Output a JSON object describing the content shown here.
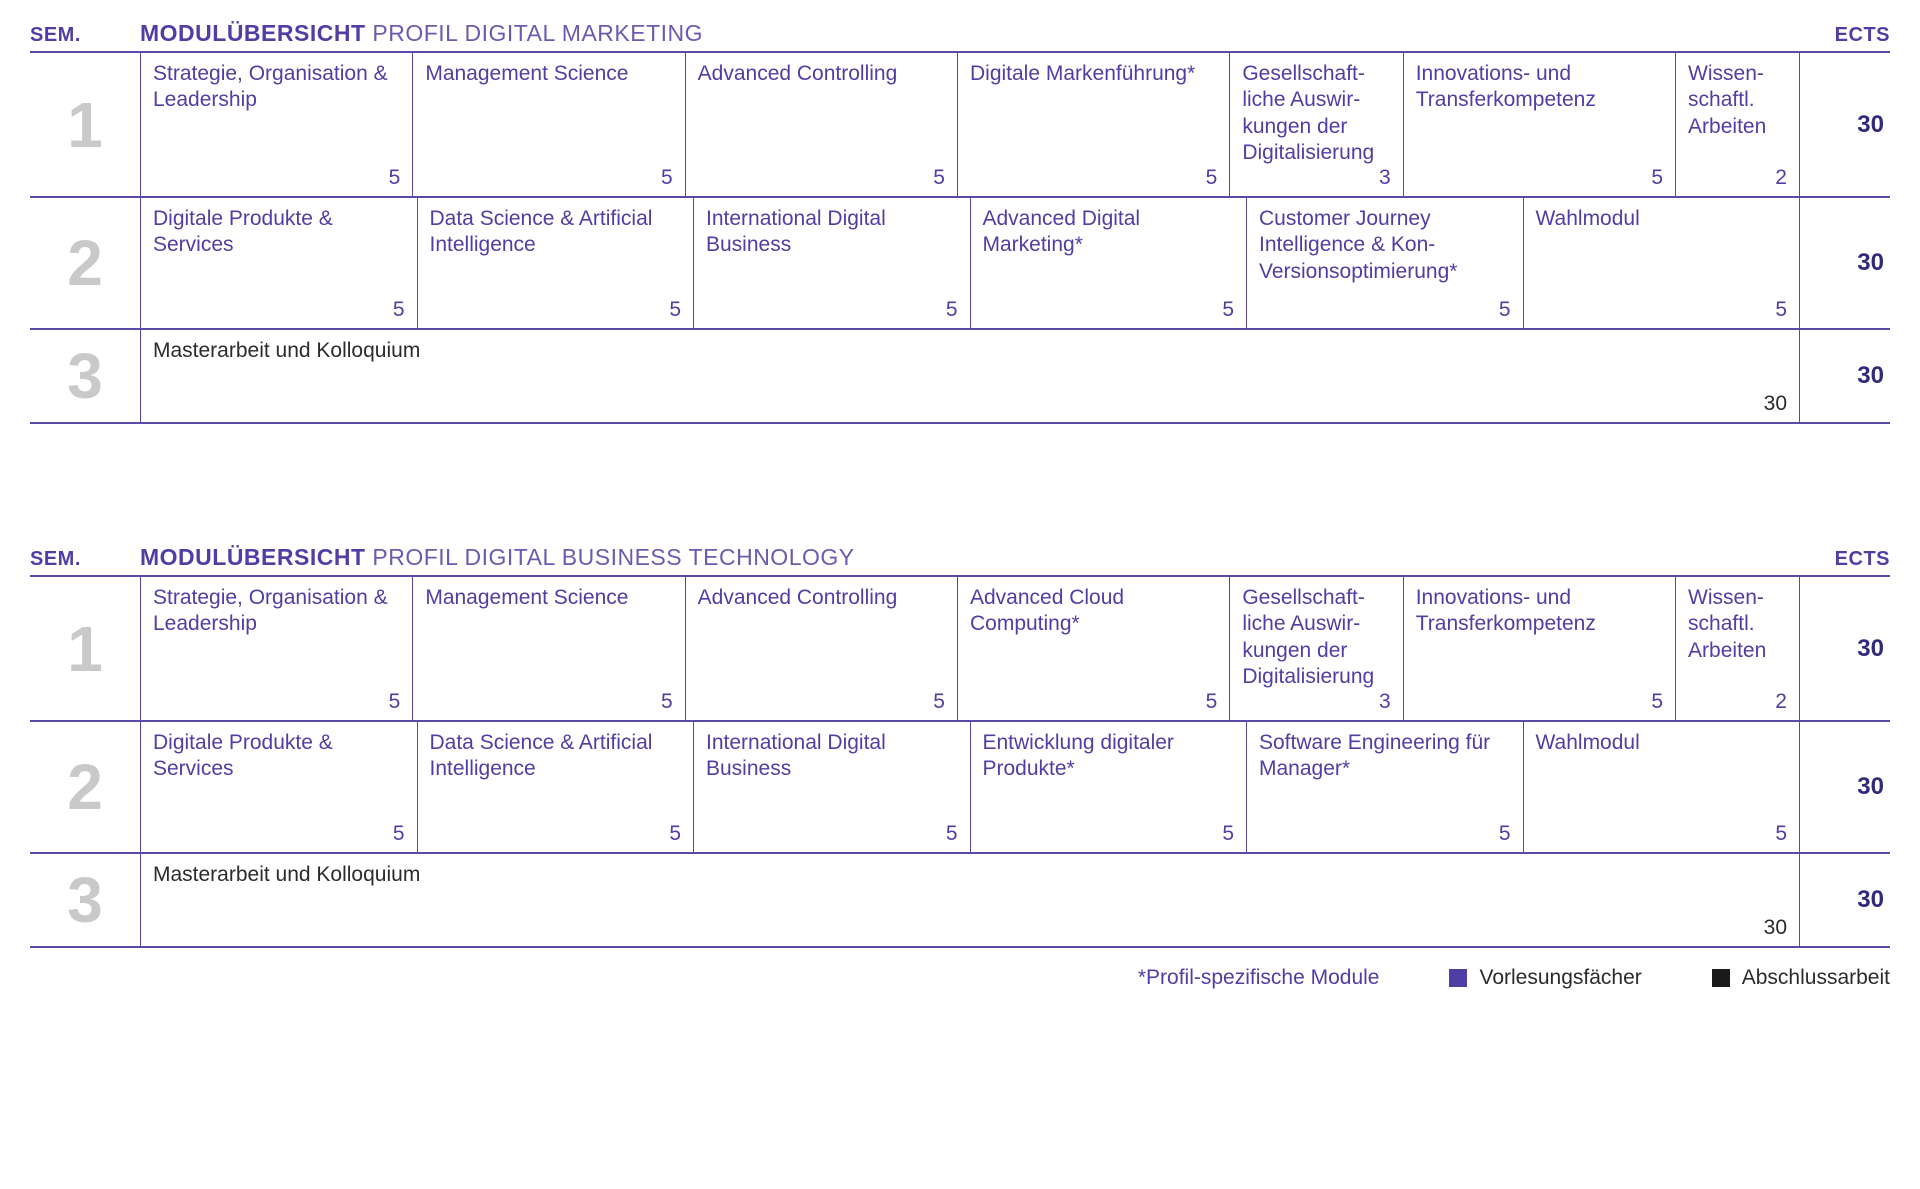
{
  "colors": {
    "primary": "#4f3ea3",
    "primaryLight": "#6a5bb0",
    "border": "#5a49a8",
    "semnum": "#c9c9c9",
    "thesisText": "#2b2b2b",
    "ectsTotal": "#2f2a7a",
    "legendBlack": "#1a1a1a"
  },
  "header": {
    "sem": "SEM.",
    "titleBold": "MODULÜBERSICHT",
    "ects": "ECTS"
  },
  "legend": {
    "note": "*Profil-spezifische Module",
    "lecture": "Vorlesungsfächer",
    "thesis": "Abschlussarbeit"
  },
  "overviews": [
    {
      "titleLight": "PROFIL DIGITAL MARKETING",
      "rows": [
        {
          "sem": "1",
          "ects": "30",
          "thesis": false,
          "modules": [
            {
              "name": "Strategie, Organisation & Leadership",
              "credits": "5",
              "flex": 5
            },
            {
              "name": "Management Science",
              "credits": "5",
              "flex": 5
            },
            {
              "name": "Advanced Controlling",
              "credits": "5",
              "flex": 5
            },
            {
              "name": "Digitale Markenführung*",
              "credits": "5",
              "flex": 5
            },
            {
              "name": "Gesellschaft­liche Auswir­kungen der Digitalisierung",
              "credits": "3",
              "flex": 3
            },
            {
              "name": "Innovations- und Transferkompetenz",
              "credits": "5",
              "flex": 5
            },
            {
              "name": "Wissen­schaftl. Arbeiten",
              "credits": "2",
              "flex": 2
            }
          ]
        },
        {
          "sem": "2",
          "ects": "30",
          "thesis": false,
          "modules": [
            {
              "name": "Digitale Produkte & Services",
              "credits": "5",
              "flex": 5
            },
            {
              "name": "Data Science & Artificial Intelligence",
              "credits": "5",
              "flex": 5
            },
            {
              "name": "International Digital Business",
              "credits": "5",
              "flex": 5
            },
            {
              "name": "Advanced Digital Marketing*",
              "credits": "5",
              "flex": 5
            },
            {
              "name": "Customer Journey Intelligence & Kon-Versionsoptimierung*",
              "credits": "5",
              "flex": 5
            },
            {
              "name": "Wahlmodul",
              "credits": "5",
              "flex": 5
            }
          ]
        },
        {
          "sem": "3",
          "ects": "30",
          "thesis": true,
          "modules": [
            {
              "name": "Masterarbeit und Kolloquium",
              "credits": "30",
              "flex": 30
            }
          ]
        }
      ]
    },
    {
      "titleLight": "PROFIL DIGITAL BUSINESS TECHNOLOGY",
      "rows": [
        {
          "sem": "1",
          "ects": "30",
          "thesis": false,
          "modules": [
            {
              "name": "Strategie, Organisation & Leadership",
              "credits": "5",
              "flex": 5
            },
            {
              "name": "Management Science",
              "credits": "5",
              "flex": 5
            },
            {
              "name": "Advanced Controlling",
              "credits": "5",
              "flex": 5
            },
            {
              "name": "Advanced Cloud Computing*",
              "credits": "5",
              "flex": 5
            },
            {
              "name": "Gesellschaft­liche Auswir­kungen der Digitalisierung",
              "credits": "3",
              "flex": 3
            },
            {
              "name": "Innovations- und Transferkompetenz",
              "credits": "5",
              "flex": 5
            },
            {
              "name": "Wissen­schaftl. Arbeiten",
              "credits": "2",
              "flex": 2
            }
          ]
        },
        {
          "sem": "2",
          "ects": "30",
          "thesis": false,
          "modules": [
            {
              "name": "Digitale Produkte & Services",
              "credits": "5",
              "flex": 5
            },
            {
              "name": "Data Science & Artificial Intelligence",
              "credits": "5",
              "flex": 5
            },
            {
              "name": "International Digital Business",
              "credits": "5",
              "flex": 5
            },
            {
              "name": "Entwicklung digitaler Produkte*",
              "credits": "5",
              "flex": 5
            },
            {
              "name": "Software Engineering für Manager*",
              "credits": "5",
              "flex": 5
            },
            {
              "name": "Wahlmodul",
              "credits": "5",
              "flex": 5
            }
          ]
        },
        {
          "sem": "3",
          "ects": "30",
          "thesis": true,
          "modules": [
            {
              "name": "Masterarbeit und Kolloquium",
              "credits": "30",
              "flex": 30
            }
          ]
        }
      ]
    }
  ]
}
